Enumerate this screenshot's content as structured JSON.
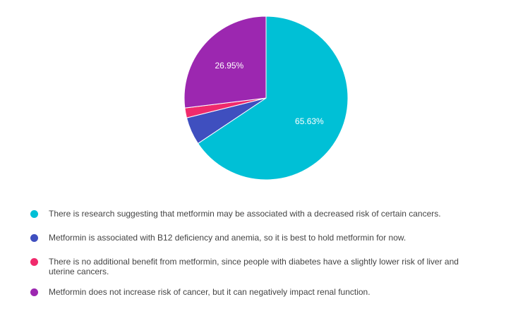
{
  "chart_data": {
    "type": "pie",
    "slices": [
      {
        "label": "There is research suggesting that metformin may be associated with a decreased risk of certain cancers.",
        "value": 65.63,
        "display": "65.63%",
        "color": "#00C0D6"
      },
      {
        "label": "Metformin is associated with B12 deficiency and anemia, so it is best to hold metformin for now.",
        "value": 5.47,
        "display": "",
        "color": "#3F4FBF"
      },
      {
        "label": "There is no additional benefit from metformin, since people with diabetes have a slightly lower risk of liver and uterine cancers.",
        "value": 1.95,
        "display": "",
        "color": "#F02A6C"
      },
      {
        "label": "Metformin does not increase risk of cancer, but it can negatively impact renal function.",
        "value": 26.95,
        "display": "26.95%",
        "color": "#9C27B0"
      }
    ],
    "legend_position": "bottom",
    "start_angle": "top",
    "direction": "clockwise"
  }
}
